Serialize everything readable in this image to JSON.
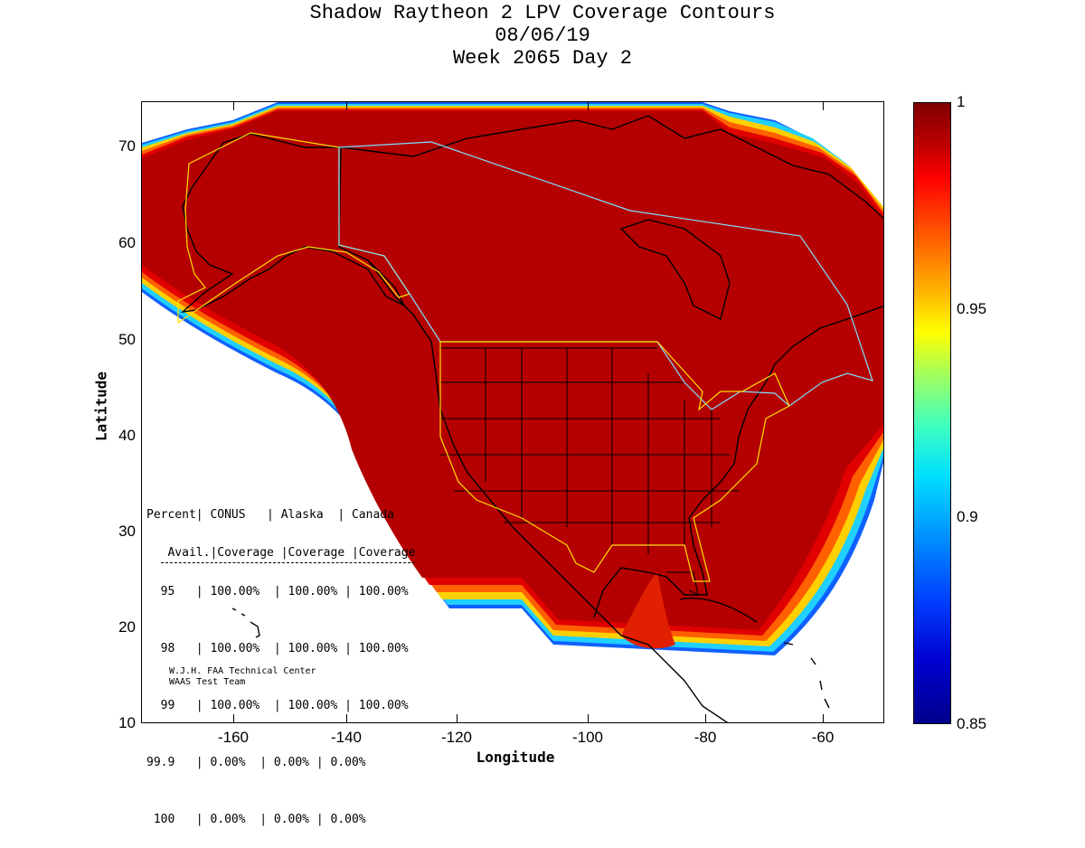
{
  "title": {
    "line1": "Shadow Raytheon 2 LPV Coverage Contours",
    "line2": "08/06/19",
    "line3": "Week 2065 Day 2"
  },
  "axes": {
    "xlabel": "Longitude",
    "ylabel": "Latitude",
    "xticks": [
      "-160",
      "-140",
      "-120",
      "-100",
      "-80",
      "-60"
    ],
    "yticks": [
      "70",
      "60",
      "50",
      "40",
      "30",
      "20",
      "10"
    ]
  },
  "colorbar": {
    "labels": [
      "1",
      "0.95",
      "0.9",
      "0.85"
    ]
  },
  "table": {
    "header1": "Percent| CONUS   | Alaska  | Canada",
    "header2": " Avail.|Coverage |Coverage |Coverage",
    "rows": [
      "  95   | 100.00%  | 100.00% | 100.00%",
      "  98   | 100.00%  | 100.00% | 100.00%",
      "  99   | 100.00%  | 100.00% | 100.00%",
      "99.9   | 0.00%  | 0.00% | 0.00%",
      " 100   | 0.00%  | 0.00% | 0.00%"
    ]
  },
  "credit": {
    "line1": "W.J.H. FAA Technical Center",
    "line2": "WAAS Test Team"
  },
  "colors": {
    "coverage_main": "#b40000",
    "coverage_edge": "#ff2000",
    "border": "#000000"
  }
}
